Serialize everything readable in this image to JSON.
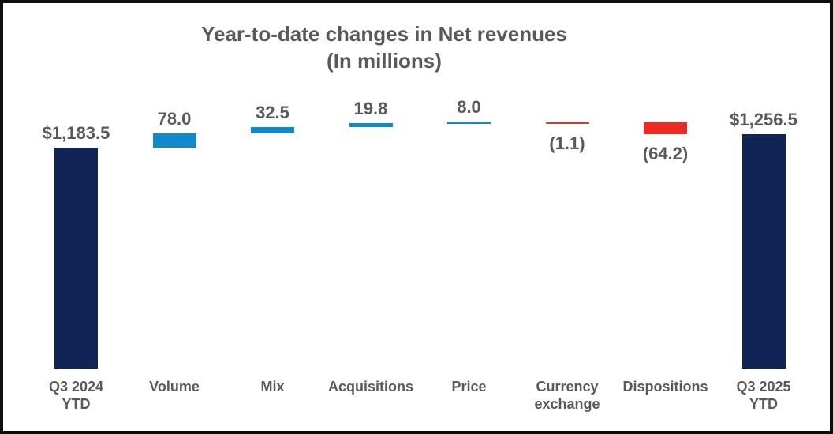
{
  "title": {
    "line1": "Year-to-date changes in Net revenues",
    "line2": "(In millions)",
    "color": "#595959"
  },
  "chart_data": {
    "type": "bar",
    "subtype": "waterfall",
    "title": "Year-to-date changes in Net revenues",
    "subtitle": "(In millions)",
    "unit": "millions of dollars",
    "categories": [
      "Q3 2024 YTD",
      "Volume",
      "Mix",
      "Acquisitions",
      "Price",
      "Currency exchange",
      "Dispositions",
      "Q3 2025 YTD"
    ],
    "series": [
      {
        "name": "Net revenues change",
        "values": [
          1183.5,
          78.0,
          32.5,
          19.8,
          8.0,
          -1.1,
          -64.2,
          1256.5
        ]
      }
    ],
    "bar_roles": [
      "total",
      "increase",
      "increase",
      "increase",
      "increase",
      "decrease",
      "decrease",
      "total"
    ],
    "value_labels": [
      "$1,183.5",
      "78.0",
      "32.5",
      "19.8",
      "8.0",
      "(1.1)",
      "(64.2)",
      "$1,256.5"
    ],
    "axis_labels_multiline": [
      [
        "Q3 2024",
        "YTD"
      ],
      [
        "Volume"
      ],
      [
        "Mix"
      ],
      [
        "Acquisitions"
      ],
      [
        "Price"
      ],
      [
        "Currency",
        "exchange"
      ],
      [
        "Dispositions"
      ],
      [
        "Q3 2025",
        "YTD"
      ]
    ],
    "colors": {
      "total": "#102455",
      "increase": "#1189CD",
      "decrease": "#ED2A24",
      "increase_thin": "#2B84B8",
      "decrease_thin": "#B5473C",
      "label": "#595959"
    },
    "ylim": [
      0,
      1400
    ],
    "baseline": 0,
    "grid": false,
    "legend": false,
    "xlabel": "",
    "ylabel": ""
  }
}
